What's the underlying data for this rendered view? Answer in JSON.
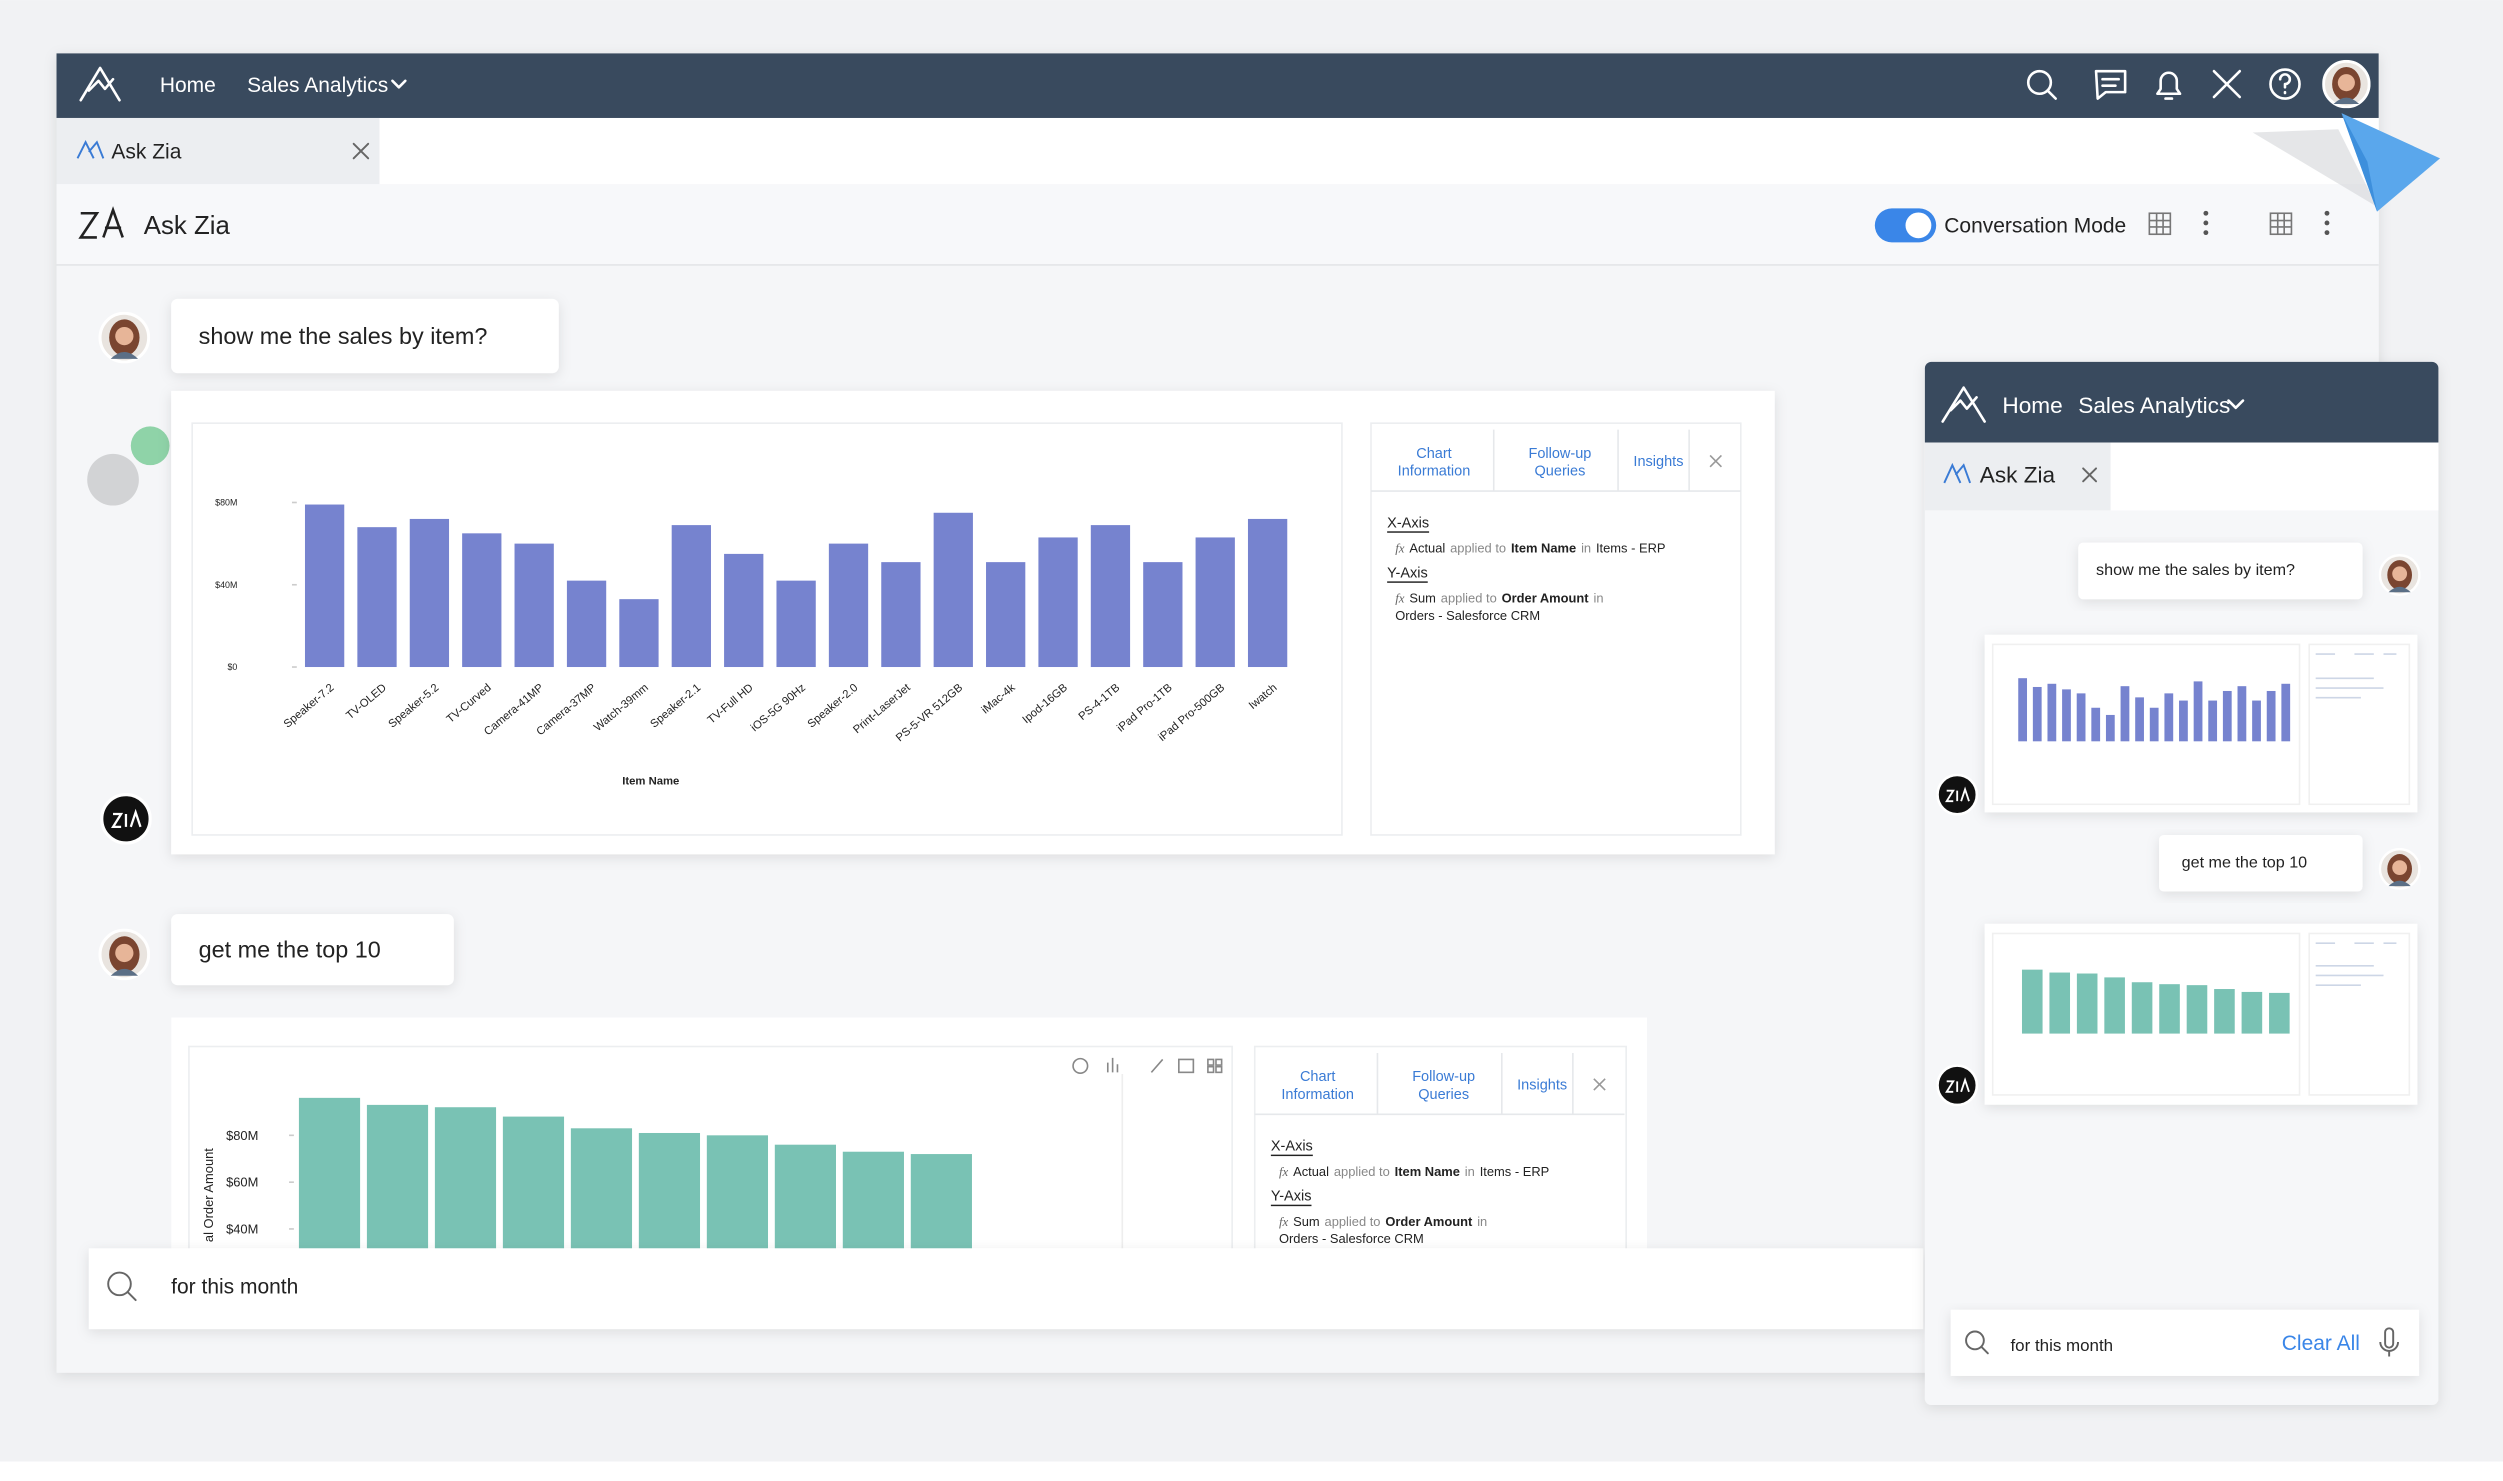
{
  "nav": {
    "home": "Home",
    "app": "Sales Analytics"
  },
  "tab": {
    "title": "Ask Zia"
  },
  "header": {
    "title": "Ask Zia",
    "mode": "Conversation Mode"
  },
  "queries": [
    "show me the sales by item?",
    "get me the top 10"
  ],
  "chart_data": [
    {
      "type": "bar",
      "x_label": "Item Name",
      "categories": [
        "Speaker-7.2",
        "TV-OLED",
        "Speaker-5.2",
        "TV-Curved",
        "Camera-41MP",
        "Camera-37MP",
        "Watch-39mm",
        "Speaker-2.1",
        "TV-Full HD",
        "iOS-5G 90Hz",
        "Speaker-2.0",
        "Print-LaserJet",
        "PS-5-VR 512GB",
        "iMac-4k",
        "Ipod-16GB",
        "PS-4-1TB",
        "iPad Pro-1TB",
        "iPad Pro-500GB",
        "Iwatch"
      ],
      "values": [
        79000000,
        68000000,
        72000000,
        65000000,
        60000000,
        42000000,
        33000000,
        69000000,
        55000000,
        42000000,
        60000000,
        51000000,
        75000000,
        51000000,
        63000000,
        69000000,
        51000000,
        63000000,
        72000000
      ],
      "color": "#7683cf",
      "ylim": [
        0,
        95000000
      ],
      "yticks": [
        {
          "value": 0,
          "label": "$0"
        },
        {
          "value": 40000000,
          "label": "$40M"
        },
        {
          "value": 80000000,
          "label": "$80M"
        }
      ]
    },
    {
      "type": "bar",
      "y_label": "al Order Amount",
      "values": [
        96000000,
        93000000,
        92000000,
        88000000,
        83000000,
        81000000,
        80000000,
        76000000,
        73000000,
        72000000
      ],
      "color": "#79c2b4",
      "ylim": [
        30000000,
        100000000
      ],
      "yticks": [
        {
          "value": 40000000,
          "label": "$40M"
        },
        {
          "value": 60000000,
          "label": "$60M"
        },
        {
          "value": 80000000,
          "label": "$80M"
        }
      ]
    }
  ],
  "chart_info": {
    "tabs": [
      [
        "Chart",
        "Information"
      ],
      [
        "Follow-up",
        "Queries"
      ],
      [
        "Insights"
      ]
    ],
    "x_axis": {
      "label": "X-Axis",
      "icon": "fx",
      "function": "Actual",
      "applied": "applied to",
      "field": "Item Name",
      "in": "in",
      "source": "Items - ERP"
    },
    "y_axis": {
      "label": "Y-Axis",
      "icon": "fx",
      "function": "Sum",
      "applied": "applied to",
      "field": "Order Amount",
      "in": "in",
      "source": "Orders - Salesforce CRM"
    }
  },
  "search": {
    "query": "for this month"
  },
  "side_panel": {
    "clear": "Clear All"
  }
}
